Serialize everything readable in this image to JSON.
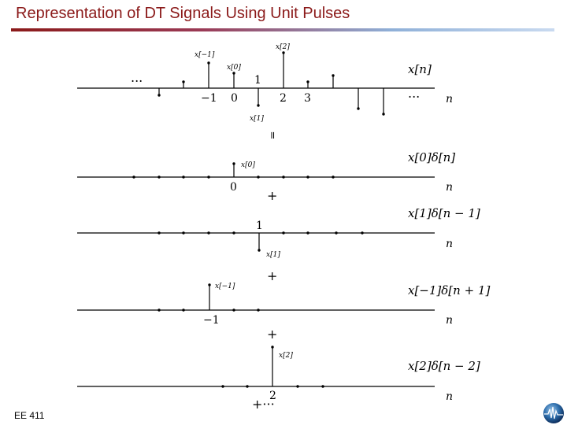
{
  "title": "Representation of DT Signals Using Unit Pulses",
  "footer": "EE 411",
  "logo_icon": "globe-waveform-icon",
  "colors": {
    "title": "#8b1a1a",
    "rule_start": "#8b1a1a",
    "rule_end": "#c9daf0"
  },
  "equals_sign": "=",
  "main_signal": {
    "label": "x[n]",
    "axis_var": "n",
    "ellipsis_left": "...",
    "ellipsis_right": "...",
    "tick_labels": [
      "−1",
      "0",
      "1",
      "2",
      "3"
    ],
    "sample_labels": {
      "x_minus1": "x[−1]",
      "x0": "x[0]",
      "x1": "x[1]",
      "x2": "x[2]"
    }
  },
  "components": [
    {
      "expression": "x[0]δ[n]",
      "tick_label": "0",
      "sample_label": "x[0]",
      "axis_var": "n",
      "operator": "+"
    },
    {
      "expression": "x[1]δ[n − 1]",
      "tick_label": "1",
      "sample_label": "x[1]",
      "axis_var": "n",
      "operator": "+"
    },
    {
      "expression": "x[−1]δ[n + 1]",
      "tick_label": "−1",
      "sample_label": "x[−1]",
      "axis_var": "n",
      "operator": "+"
    },
    {
      "expression": "x[2]δ[n − 2]",
      "tick_label": "2",
      "sample_label": "x[2]",
      "axis_var": "n",
      "operator": "+···"
    }
  ]
}
